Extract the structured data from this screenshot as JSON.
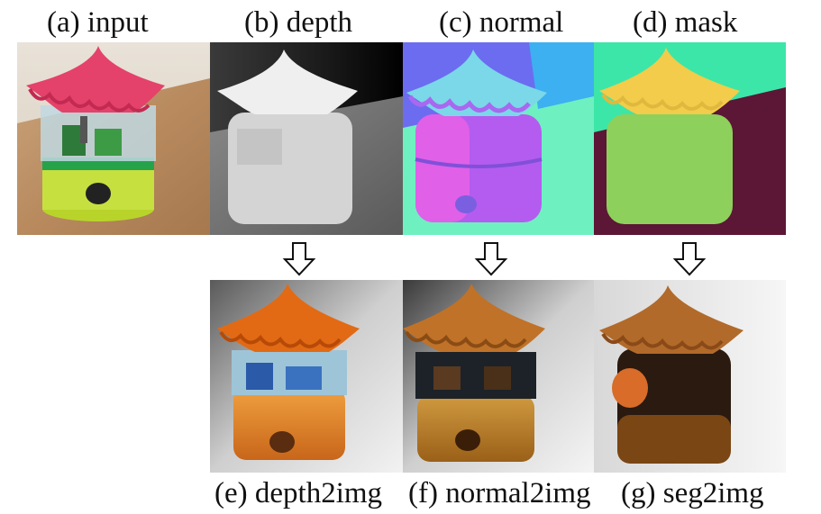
{
  "figure": {
    "top_captions": [
      "(a) input",
      "(b) depth",
      "(c) normal",
      "(d) mask"
    ],
    "bottom_captions": [
      "(e) depth2img",
      "(f) normal2img",
      "(g) seg2img"
    ],
    "panels": {
      "input": "photo of a toy carousel with pink roof and green base",
      "depth": "grayscale depth map",
      "normal": "surface normal map",
      "mask": "segmentation mask",
      "depth2img": "generated image from depth",
      "normal2img": "generated image from normal",
      "seg2img": "generated image from segmentation"
    }
  }
}
